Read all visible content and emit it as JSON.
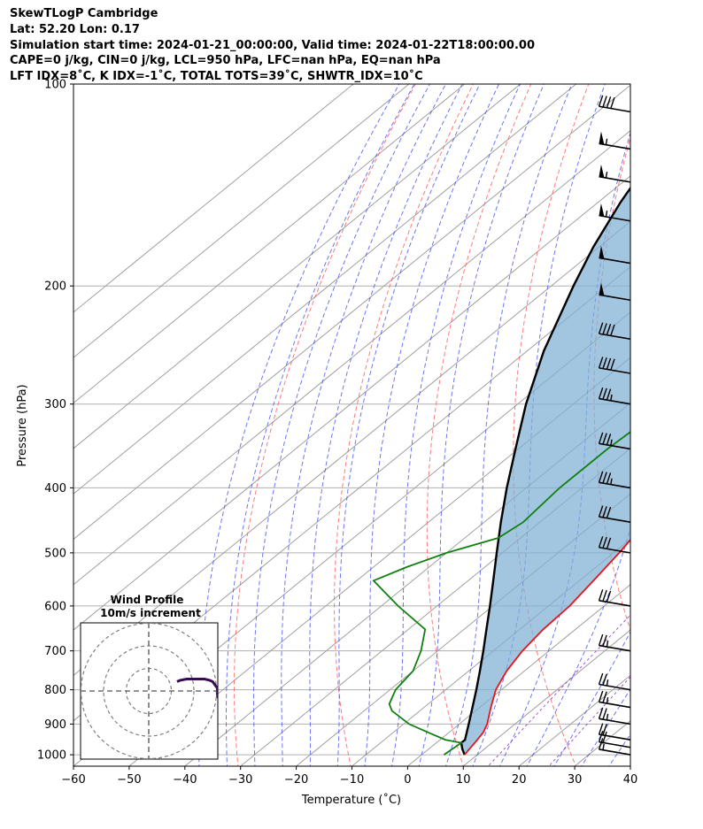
{
  "header": {
    "line1": "SkewTLogP Cambridge",
    "line2": "Lat: 52.20   Lon: 0.17",
    "line3": "Simulation start time: 2024-01-21_00:00:00, Valid time: 2024-01-22T18:00:00.00",
    "line4": "CAPE=0 j/kg, CIN=0 j/kg, LCL=950 hPa, LFC=nan hPa, EQ=nan hPa",
    "line5": "LFT IDX=8˚C, K IDX=-1˚C, TOTAL TOTS=39˚C, SHWTR_IDX=10˚C"
  },
  "colors": {
    "temperature": "#e8141a",
    "dewpoint": "#108010",
    "parcel": "#000000",
    "cape_fill": "#7fb0d4",
    "dry_adiabat": "#ff5a5a",
    "moist_adiabat": "#3c48ee",
    "mixing_ratio": "#9b40c8",
    "isotherm": "#a0a0a0",
    "hodograph": "#3a0a52"
  },
  "inset": {
    "title1": "Wind Profile",
    "title2": "10m/s increment"
  },
  "chart_data": {
    "type": "skew-t log-p",
    "xlabel": "Temperature ($^{\\circ}$C)",
    "xlabel_display": "Temperature (˚C)",
    "ylabel": "Pressure (hPa)",
    "xlim": [
      -60,
      40
    ],
    "ylim": [
      1040,
      100
    ],
    "x_ticks": [
      "−60",
      "−50",
      "−40",
      "−30",
      "−20",
      "−10",
      "0",
      "10",
      "20",
      "30",
      "40"
    ],
    "x_tick_values": [
      -60,
      -50,
      -40,
      -30,
      -20,
      -10,
      0,
      10,
      20,
      30,
      40
    ],
    "y_ticks": [
      "100",
      "200",
      "300",
      "400",
      "500",
      "600",
      "700",
      "800",
      "900",
      "1000"
    ],
    "y_tick_values": [
      100,
      200,
      300,
      400,
      500,
      600,
      700,
      800,
      900,
      1000
    ],
    "grid": true,
    "series": [
      {
        "key": "temperature",
        "pressure": [
          1000,
          950,
          925,
          900,
          850,
          800,
          750,
          700,
          650,
          600,
          550,
          500,
          450,
          400,
          350,
          300,
          250,
          225,
          200,
          175,
          150,
          125,
          100
        ],
        "values": [
          7.7,
          6.7,
          6.1,
          5.0,
          2.0,
          -1.0,
          -3.2,
          -4.8,
          -5.8,
          -6.2,
          -7.5,
          -9.0,
          -11.0,
          -13.5,
          -16.5,
          -19.0,
          -21.0,
          -21.0,
          -20.5,
          -18.5,
          -16.0,
          -13.5,
          -12.0
        ]
      },
      {
        "key": "dewpoint",
        "pressure": [
          1000,
          960,
          950,
          930,
          900,
          860,
          840,
          800,
          750,
          700,
          650,
          600,
          550,
          525,
          500,
          475,
          450,
          400,
          350,
          300,
          250,
          200,
          175,
          160,
          150,
          125,
          100
        ],
        "values": [
          4.0,
          4.5,
          1.0,
          -3.0,
          -9.0,
          -15.0,
          -17.0,
          -19.0,
          -20.0,
          -23.0,
          -27.0,
          -37.0,
          -47.0,
          -44.0,
          -40.0,
          -34.0,
          -33.0,
          -34.0,
          -34.0,
          -33.0,
          -31.0,
          -30.0,
          -31.0,
          -31.0,
          -29.0,
          -24.0,
          -18.0
        ]
      },
      {
        "key": "parcel",
        "pressure": [
          1000,
          980,
          960,
          950,
          900,
          850,
          800,
          750,
          700,
          650,
          600,
          550,
          500,
          450,
          400,
          350,
          300,
          250,
          200,
          175,
          150,
          125,
          100
        ],
        "values": [
          7.7,
          6.0,
          4.5,
          4.5,
          1.7,
          -1.3,
          -4.5,
          -8.0,
          -11.8,
          -16.0,
          -20.5,
          -25.5,
          -31.0,
          -37.0,
          -43.5,
          -50.5,
          -58.5,
          -67.0,
          -76.0,
          -81.0,
          -86.0,
          -91.0,
          -96.0
        ]
      }
    ],
    "wind_barbs": [
      {
        "p": 1000,
        "speed_kt": 15
      },
      {
        "p": 975,
        "speed_kt": 20
      },
      {
        "p": 950,
        "speed_kt": 20
      },
      {
        "p": 900,
        "speed_kt": 25
      },
      {
        "p": 850,
        "speed_kt": 25
      },
      {
        "p": 800,
        "speed_kt": 25
      },
      {
        "p": 700,
        "speed_kt": 25
      },
      {
        "p": 600,
        "speed_kt": 30
      },
      {
        "p": 500,
        "speed_kt": 30
      },
      {
        "p": 450,
        "speed_kt": 30
      },
      {
        "p": 400,
        "speed_kt": 35
      },
      {
        "p": 350,
        "speed_kt": 35
      },
      {
        "p": 300,
        "speed_kt": 35
      },
      {
        "p": 270,
        "speed_kt": 40
      },
      {
        "p": 240,
        "speed_kt": 40
      },
      {
        "p": 210,
        "speed_kt": 50
      },
      {
        "p": 185,
        "speed_kt": 50
      },
      {
        "p": 160,
        "speed_kt": 55
      },
      {
        "p": 140,
        "speed_kt": 55
      },
      {
        "p": 125,
        "speed_kt": 55
      },
      {
        "p": 110,
        "speed_kt": 40
      }
    ],
    "hodograph": {
      "rings_ms": [
        10,
        20,
        30
      ],
      "u": [
        -22,
        -20,
        -15,
        -8,
        -2,
        2,
        4,
        6,
        7.5,
        7.5,
        8
      ],
      "v": [
        7,
        8,
        9,
        9,
        9,
        8,
        7,
        4,
        2,
        -4,
        -5
      ]
    }
  }
}
